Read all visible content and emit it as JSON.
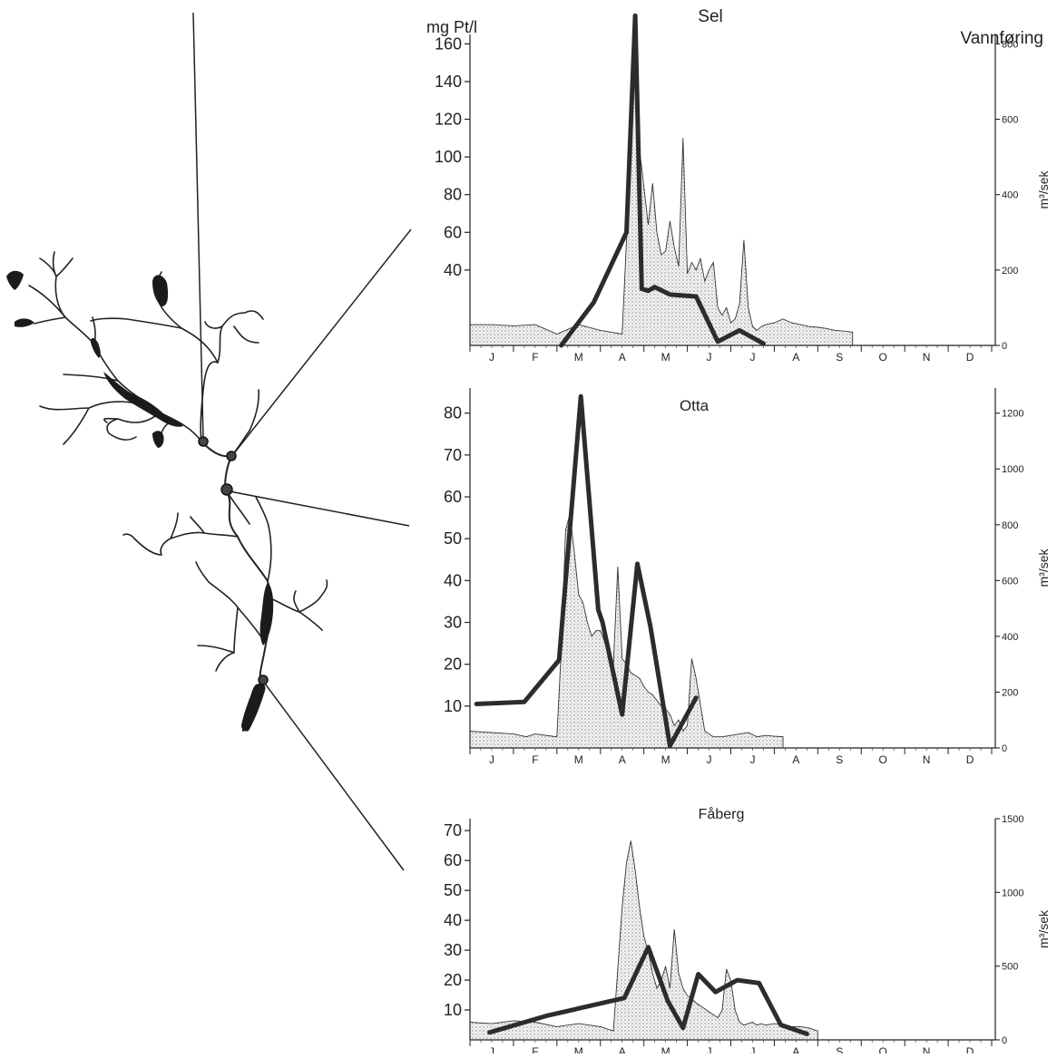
{
  "header": {
    "left_unit": "mg Pt/l",
    "right_label": "Vannføring"
  },
  "months": [
    "J",
    "F",
    "M",
    "A",
    "M",
    "J",
    "J",
    "A",
    "S",
    "O",
    "N",
    "D"
  ],
  "chart_data": [
    {
      "type": "line",
      "title": "Sel",
      "ylabel": "mg Pt/l",
      "y2label": "m³/sek",
      "y_ticks": [
        40,
        60,
        80,
        100,
        120,
        140,
        160
      ],
      "y2_ticks": [
        0,
        200,
        400,
        600,
        800
      ],
      "ylim": [
        0,
        165
      ],
      "y2lim": [
        0,
        825
      ],
      "series": [
        {
          "role": "color",
          "x": [
            2.1,
            2.85,
            3.6,
            3.8,
            3.95,
            4.1,
            4.25,
            4.6,
            5.2,
            5.7,
            6.2,
            6.75,
            7.3,
            7.75
          ],
          "y": [
            0,
            23,
            60,
            175,
            30,
            29,
            31,
            27,
            26,
            2,
            8,
            1,
            null,
            null
          ]
        },
        {
          "role": "discharge",
          "x": [
            0,
            0.5,
            1.0,
            1.5,
            2.0,
            2.5,
            3.0,
            3.5,
            3.65,
            3.75,
            3.85,
            3.9,
            4.0,
            4.1,
            4.2,
            4.3,
            4.4,
            4.5,
            4.6,
            4.7,
            4.8,
            4.9,
            5.0,
            5.1,
            5.2,
            5.3,
            5.4,
            5.5,
            5.6,
            5.7,
            5.8,
            5.9,
            6.0,
            6.1,
            6.2,
            6.3,
            6.4,
            6.5,
            6.6,
            6.7,
            6.8,
            7.0,
            7.2,
            7.4,
            7.6,
            7.8,
            8.0,
            8.2,
            8.4,
            8.6,
            8.8
          ],
          "y": [
            55,
            55,
            52,
            55,
            30,
            55,
            40,
            30,
            400,
            680,
            740,
            520,
            420,
            320,
            430,
            300,
            240,
            250,
            330,
            260,
            210,
            550,
            190,
            220,
            200,
            230,
            170,
            200,
            220,
            100,
            80,
            100,
            60,
            70,
            110,
            280,
            100,
            50,
            40,
            50,
            55,
            60,
            70,
            60,
            55,
            50,
            48,
            45,
            40,
            38,
            35
          ]
        }
      ]
    },
    {
      "type": "line",
      "title": "Otta",
      "ylabel": "mg Pt/l",
      "y2label": "m³/sek",
      "y_ticks": [
        10,
        20,
        30,
        40,
        50,
        60,
        70,
        80
      ],
      "y2_ticks": [
        0,
        200,
        400,
        600,
        800,
        1000,
        1200
      ],
      "ylim": [
        0,
        86
      ],
      "y2lim": [
        0,
        1290
      ],
      "series": [
        {
          "role": "color",
          "x": [
            0.15,
            1.25,
            2.05,
            2.55,
            2.95,
            3.05,
            3.5,
            3.85,
            4.15,
            4.6,
            5.2,
            5.55
          ],
          "y": [
            10.5,
            11,
            21,
            84,
            33,
            30,
            8,
            44,
            29,
            0.5,
            12,
            null
          ]
        },
        {
          "role": "discharge",
          "x": [
            0,
            0.5,
            1.0,
            1.3,
            1.5,
            2.0,
            2.1,
            2.2,
            2.3,
            2.4,
            2.5,
            2.6,
            2.7,
            2.8,
            2.9,
            3.0,
            3.1,
            3.2,
            3.3,
            3.4,
            3.5,
            3.6,
            3.7,
            3.8,
            3.9,
            4.0,
            4.1,
            4.2,
            4.3,
            4.4,
            4.5,
            4.6,
            4.7,
            4.8,
            4.9,
            5.0,
            5.1,
            5.2,
            5.4,
            5.6,
            5.8,
            6.0,
            6.2,
            6.4,
            6.6,
            6.8,
            7.0,
            7.2
          ],
          "y": [
            60,
            55,
            50,
            40,
            50,
            40,
            350,
            780,
            840,
            700,
            550,
            520,
            450,
            400,
            420,
            420,
            380,
            330,
            300,
            650,
            320,
            300,
            270,
            260,
            250,
            220,
            200,
            190,
            170,
            150,
            140,
            120,
            80,
            100,
            60,
            80,
            320,
            250,
            60,
            40,
            40,
            45,
            50,
            55,
            40,
            45,
            42,
            40
          ]
        }
      ]
    },
    {
      "type": "line",
      "title": "Fåberg",
      "ylabel": "mg Pt/l",
      "y2label": "m³/sek",
      "y_ticks": [
        10,
        20,
        30,
        40,
        50,
        60,
        70
      ],
      "y2_ticks": [
        0,
        500,
        1000,
        1500
      ],
      "ylim": [
        0,
        74
      ],
      "y2lim": [
        0,
        1500
      ],
      "series": [
        {
          "role": "color",
          "x": [
            0.45,
            1.75,
            3.55,
            4.1,
            4.55,
            4.9,
            5.25,
            5.65,
            6.15,
            6.65,
            7.15,
            7.75
          ],
          "y": [
            2.5,
            8,
            14,
            31,
            13,
            4,
            22,
            16,
            20,
            19,
            5,
            2
          ]
        },
        {
          "role": "discharge",
          "x": [
            0,
            0.5,
            1.0,
            1.5,
            2.0,
            2.5,
            3.0,
            3.3,
            3.5,
            3.6,
            3.7,
            3.8,
            3.9,
            4.0,
            4.1,
            4.2,
            4.3,
            4.4,
            4.5,
            4.6,
            4.7,
            4.8,
            4.9,
            5.0,
            5.1,
            5.2,
            5.3,
            5.4,
            5.5,
            5.6,
            5.7,
            5.8,
            5.9,
            6.0,
            6.1,
            6.2,
            6.3,
            6.4,
            6.5,
            6.6,
            6.7,
            6.8,
            7.0,
            7.2,
            7.4,
            7.6,
            7.8,
            8.0
          ],
          "y": [
            120,
            110,
            130,
            120,
            90,
            110,
            90,
            60,
            900,
            1200,
            1350,
            1150,
            900,
            700,
            600,
            450,
            350,
            400,
            500,
            350,
            750,
            450,
            350,
            300,
            280,
            250,
            230,
            210,
            190,
            170,
            150,
            200,
            480,
            400,
            200,
            120,
            100,
            110,
            120,
            100,
            110,
            100,
            110,
            100,
            90,
            90,
            80,
            60
          ]
        }
      ]
    }
  ]
}
